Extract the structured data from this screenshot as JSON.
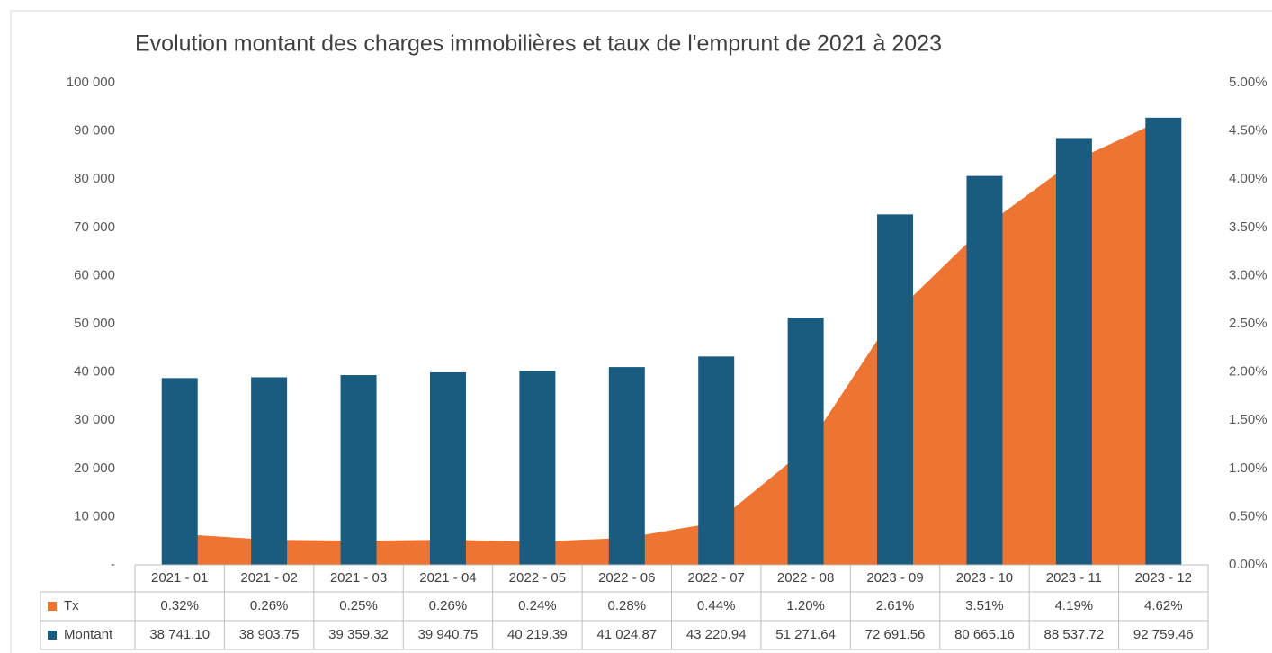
{
  "chart_data": {
    "type": "bar",
    "title": "Evolution montant des charges immobilières et taux  de l'emprunt de 2021 à 2023",
    "categories": [
      "2021 - 01",
      "2021 - 02",
      "2021 - 03",
      "2021 - 04",
      "2022 - 05",
      "2022 - 06",
      "2022 - 07",
      "2022 - 08",
      "2023 - 09",
      "2023 - 10",
      "2023 - 11",
      "2023 - 12"
    ],
    "series": [
      {
        "name": "Tx",
        "type": "area",
        "axis": "y2",
        "color": "#ed7432",
        "values": [
          0.32,
          0.26,
          0.25,
          0.26,
          0.24,
          0.28,
          0.44,
          1.2,
          2.61,
          3.51,
          4.19,
          4.62
        ],
        "value_labels": [
          "0.32%",
          "0.26%",
          "0.25%",
          "0.26%",
          "0.24%",
          "0.28%",
          "0.44%",
          "1.20%",
          "2.61%",
          "3.51%",
          "4.19%",
          "4.62%"
        ]
      },
      {
        "name": "Montant",
        "type": "bar",
        "color": "#1a5c80",
        "values": [
          38741.1,
          38903.75,
          39359.32,
          39940.75,
          40219.39,
          41024.87,
          43220.94,
          51271.64,
          72691.56,
          80665.16,
          88537.72,
          92759.46
        ],
        "value_labels": [
          "38 741.10",
          "38 903.75",
          "39 359.32",
          "39 940.75",
          "40 219.39",
          "41 024.87",
          "43 220.94",
          "51 271.64",
          "72 691.56",
          "80 665.16",
          "88 537.72",
          "92 759.46"
        ]
      }
    ],
    "ylim": [
      0,
      100000
    ],
    "yticks": [
      {
        "value": 0,
        "label": "-"
      },
      {
        "value": 10000,
        "label": "10 000"
      },
      {
        "value": 20000,
        "label": "20 000"
      },
      {
        "value": 30000,
        "label": "30 000"
      },
      {
        "value": 40000,
        "label": "40 000"
      },
      {
        "value": 50000,
        "label": "50 000"
      },
      {
        "value": 60000,
        "label": "60 000"
      },
      {
        "value": 70000,
        "label": "70 000"
      },
      {
        "value": 80000,
        "label": "80 000"
      },
      {
        "value": 90000,
        "label": "90 000"
      },
      {
        "value": 100000,
        "label": "100 000"
      }
    ],
    "y2lim": [
      0,
      5
    ],
    "y2ticks": [
      {
        "value": 0,
        "label": "0.00%"
      },
      {
        "value": 0.5,
        "label": "0.50%"
      },
      {
        "value": 1,
        "label": "1.00%"
      },
      {
        "value": 1.5,
        "label": "1.50%"
      },
      {
        "value": 2,
        "label": "2.00%"
      },
      {
        "value": 2.5,
        "label": "2.50%"
      },
      {
        "value": 3,
        "label": "3.00%"
      },
      {
        "value": 3.5,
        "label": "3.50%"
      },
      {
        "value": 4,
        "label": "4.00%"
      },
      {
        "value": 4.5,
        "label": "4.50%"
      },
      {
        "value": 5,
        "label": "5.00%"
      }
    ],
    "grid": false,
    "data_table": true
  }
}
